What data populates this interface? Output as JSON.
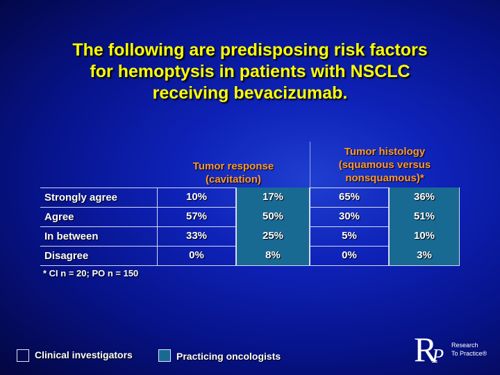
{
  "title": {
    "line1": "The following are predisposing risk factors",
    "line2": "for hemoptysis in patients with NSCLC",
    "line3": "receiving bevacizumab."
  },
  "columns": {
    "group1": {
      "line1": "Tumor response",
      "line2": "(cavitation)"
    },
    "group2": {
      "line1": "Tumor histology",
      "line2": "(squamous versus",
      "line3": "nonsquamous)*"
    }
  },
  "rows": [
    {
      "label": "Strongly agree",
      "values": [
        "10%",
        "17%",
        "65%",
        "36%"
      ]
    },
    {
      "label": "Agree",
      "values": [
        "57%",
        "50%",
        "30%",
        "51%"
      ]
    },
    {
      "label": "In between",
      "values": [
        "33%",
        "25%",
        "5%",
        "10%"
      ]
    },
    {
      "label": "Disagree",
      "values": [
        "0%",
        "8%",
        "0%",
        "3%"
      ]
    }
  ],
  "footnote": "* CI n = 20; PO n = 150",
  "legend": {
    "ci": "Clinical investigators",
    "po": "Practicing oncologists"
  },
  "logo": {
    "letter": "R",
    "letter2": "P",
    "line1": "Research",
    "line2": "To Practice®"
  },
  "colors": {
    "title": "#ffff00",
    "column_header": "#ff9933",
    "po_fill": "#186a93"
  }
}
